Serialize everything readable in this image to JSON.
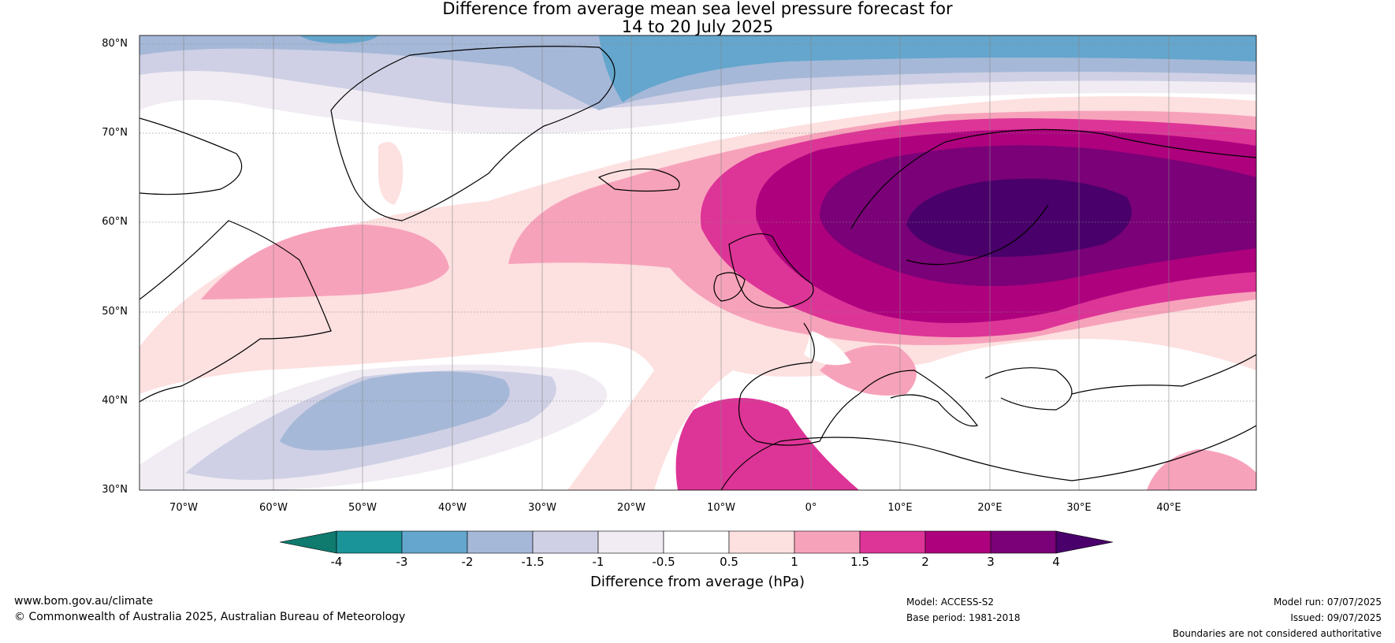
{
  "title": {
    "line1": "Difference from average mean sea level pressure forecast for",
    "line2": "14 to 20 July 2025"
  },
  "lat_labels": [
    "80°N",
    "70°N",
    "60°N",
    "50°N",
    "40°N",
    "30°N"
  ],
  "lon_labels": [
    "70°W",
    "60°W",
    "50°W",
    "40°W",
    "30°W",
    "20°W",
    "10°W",
    "0°",
    "10°E",
    "20°E",
    "30°E",
    "40°E"
  ],
  "colorbar": {
    "ticks": [
      "-4",
      "-3",
      "-2",
      "-1.5",
      "-1",
      "-0.5",
      "0.5",
      "1",
      "1.5",
      "2",
      "3",
      "4"
    ],
    "colors": [
      "#0f7a6e",
      "#1b9499",
      "#64a6cd",
      "#a5b8d8",
      "#cfd0e5",
      "#f1ecf3",
      "#ffffff",
      "#fde0e0",
      "#f7a2bb",
      "#dd3497",
      "#ae017e",
      "#7a0177",
      "#49006a"
    ],
    "label": "Difference from average (hPa)"
  },
  "footer": {
    "url": "www.bom.gov.au/climate",
    "copyright": "© Commonwealth of Australia 2025, Australian Bureau of Meteorology",
    "model": "Model: ACCESS-S2",
    "base_period": "Base period: 1981-2018",
    "model_run": "Model run: 07/07/2025",
    "issued": "Issued: 09/07/2025",
    "disclaimer": "Boundaries are not considered authoritative"
  }
}
